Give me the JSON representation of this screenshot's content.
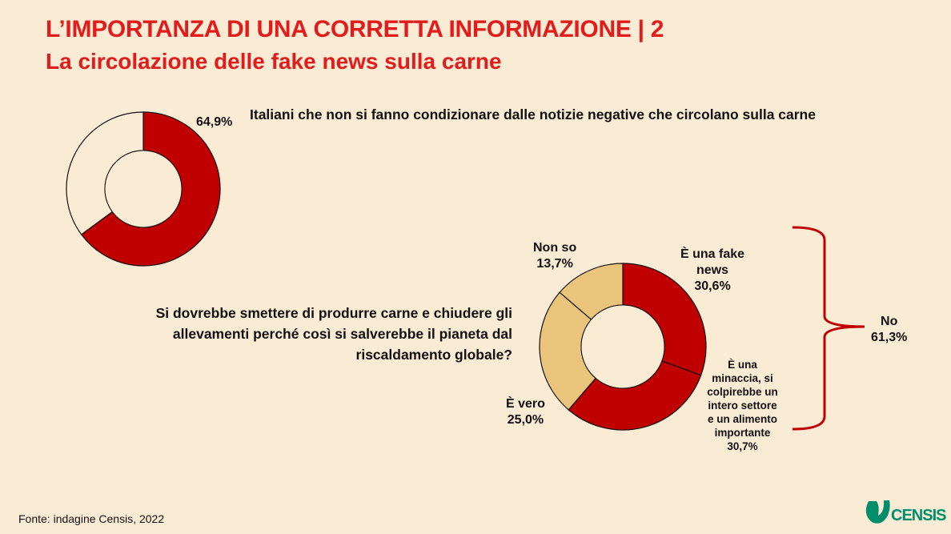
{
  "header": {
    "title": "L’IMPORTANZA DI UNA CORRETTA INFORMAZIONE | 2",
    "subtitle": "La circolazione delle fake news sulla carne"
  },
  "colors": {
    "red": "#C00000",
    "tan": "#EAC47A",
    "empty": "#FAEBD5",
    "title": "#E21B1B",
    "logo": "#008D6C"
  },
  "chart_data": [
    {
      "type": "pie",
      "variant": "donut",
      "title": "Italiani che non si fanno condizionare dalle notizie negative che circolano sulla carne",
      "slices": [
        {
          "label": "",
          "value": 64.9,
          "display": "64,9%",
          "color": "#C00000"
        },
        {
          "label": "",
          "value": 35.1,
          "color": "#FAEBD5"
        }
      ]
    },
    {
      "type": "pie",
      "variant": "donut",
      "title": "Si dovrebbe smettere di produrre carne e chiudere gli allevamenti perché così si salverebbe il pianeta dal riscaldamento globale?",
      "slices": [
        {
          "label": "È una fake news",
          "value": 30.6,
          "display": "30,6%",
          "color": "#C00000"
        },
        {
          "label": "È una minaccia, si colpirebbe un intero settore e un alimento importante",
          "value": 30.7,
          "display": "30,7%",
          "color": "#C00000"
        },
        {
          "label": "È vero",
          "value": 25.0,
          "display": "25,0%",
          "color": "#EAC47A"
        },
        {
          "label": "Non so",
          "value": 13.7,
          "display": "13,7%",
          "color": "#EAC47A"
        }
      ],
      "group": {
        "label": "No",
        "display": "61,3%"
      }
    }
  ],
  "footer": {
    "source": "Fonte: indagine Censis, 2022",
    "logo": "CENSIS"
  }
}
